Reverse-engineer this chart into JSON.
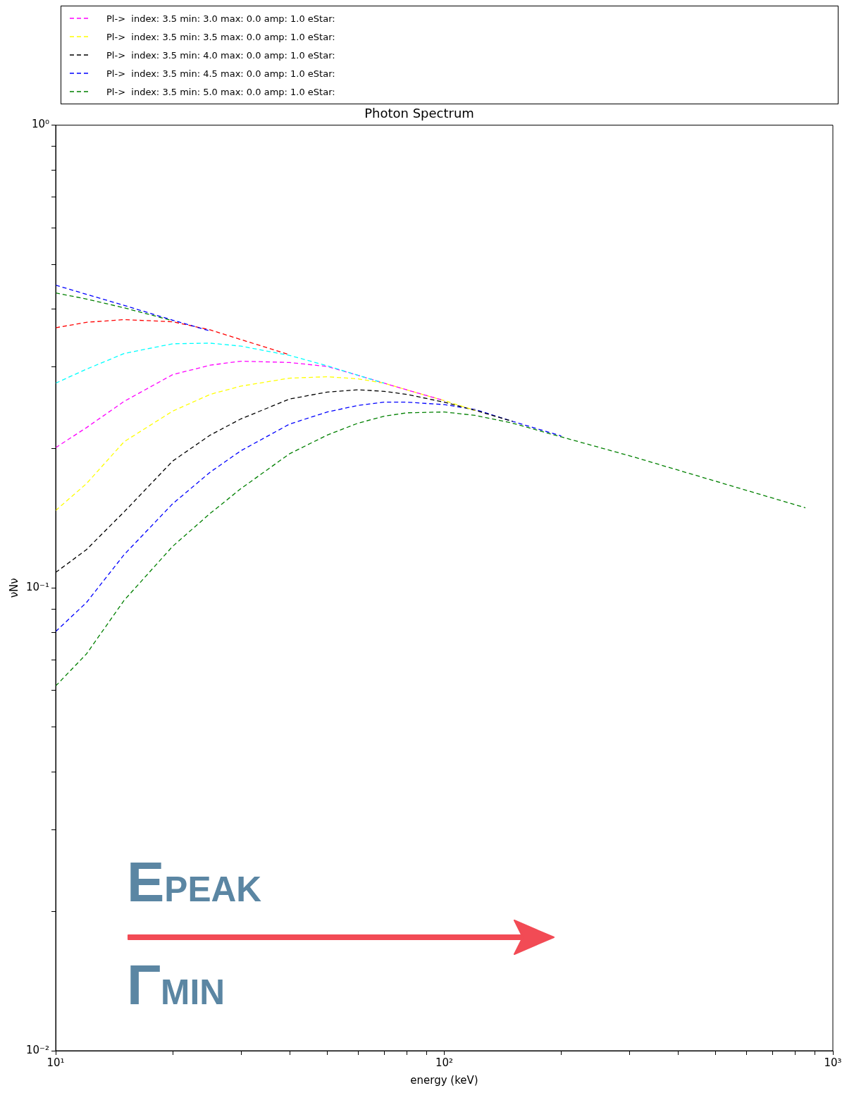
{
  "chart_data": {
    "type": "line",
    "title": "Photon Spectrum",
    "xlabel": "energy (keV)",
    "ylabel": "νNν",
    "log": "xy",
    "grid": false,
    "legend": "top",
    "marker": "none",
    "line_style": "dashed",
    "x": [
      10,
      12,
      15,
      20,
      25,
      30,
      40,
      50,
      60,
      70,
      80,
      100,
      120,
      150,
      200,
      300,
      500,
      850
    ],
    "xlim": [
      10,
      1000
    ],
    "ylim": [
      0.01,
      1
    ],
    "xticks": [
      {
        "value": 10,
        "label": "10¹"
      },
      {
        "value": 20,
        "label": null
      },
      {
        "value": 30,
        "label": null
      },
      {
        "value": 40,
        "label": null
      },
      {
        "value": 50,
        "label": null
      },
      {
        "value": 60,
        "label": null
      },
      {
        "value": 70,
        "label": null
      },
      {
        "value": 80,
        "label": null
      },
      {
        "value": 90,
        "label": null
      },
      {
        "value": 100,
        "label": "10²"
      },
      {
        "value": 200,
        "label": null
      },
      {
        "value": 300,
        "label": null
      },
      {
        "value": 400,
        "label": null
      },
      {
        "value": 500,
        "label": null
      },
      {
        "value": 600,
        "label": null
      },
      {
        "value": 700,
        "label": null
      },
      {
        "value": 800,
        "label": null
      },
      {
        "value": 900,
        "label": null
      },
      {
        "value": 1000,
        "label": "10³"
      }
    ],
    "yticks": [
      {
        "value": 0.01,
        "label": "10⁻²"
      },
      {
        "value": 0.02,
        "label": null
      },
      {
        "value": 0.03,
        "label": null
      },
      {
        "value": 0.04,
        "label": null
      },
      {
        "value": 0.05,
        "label": null
      },
      {
        "value": 0.06,
        "label": null
      },
      {
        "value": 0.07,
        "label": null
      },
      {
        "value": 0.08,
        "label": null
      },
      {
        "value": 0.09,
        "label": null
      },
      {
        "value": 0.1,
        "label": "10⁻¹"
      },
      {
        "value": 0.2,
        "label": null
      },
      {
        "value": 0.3,
        "label": null
      },
      {
        "value": 0.4,
        "label": null
      },
      {
        "value": 0.5,
        "label": null
      },
      {
        "value": 0.6,
        "label": null
      },
      {
        "value": 0.7,
        "label": null
      },
      {
        "value": 0.8,
        "label": null
      },
      {
        "value": 0.9,
        "label": null
      },
      {
        "value": 1,
        "label": "10⁰"
      }
    ],
    "series": [
      {
        "color": "#0000ff",
        "values": [
          0.451,
          0.431,
          0.408,
          0.379,
          0.359,
          null,
          null,
          null,
          null,
          null,
          null,
          null,
          null,
          null,
          null,
          null,
          null,
          null
        ]
      },
      {
        "color": "#008000",
        "values": [
          0.434,
          0.421,
          0.403,
          0.378,
          null,
          null,
          null,
          null,
          null,
          null,
          null,
          null,
          null,
          null,
          null,
          null,
          null,
          null
        ]
      },
      {
        "color": "#ff0000",
        "values": [
          0.365,
          0.375,
          0.38,
          0.376,
          0.361,
          0.344,
          0.319,
          null,
          null,
          null,
          null,
          null,
          null,
          null,
          null,
          null,
          null,
          null
        ]
      },
      {
        "color": "#00ffff",
        "values": [
          0.277,
          0.297,
          0.321,
          0.337,
          0.338,
          0.333,
          0.318,
          0.302,
          0.288,
          0.277,
          null,
          null,
          null,
          null,
          null,
          null,
          null,
          null
        ]
      },
      {
        "name": "Pl->  index: 3.5 min: 3.0 max: 0.0 amp: 1.0 eStar:",
        "color": "#ff00ff",
        "values": [
          0.201,
          0.222,
          0.253,
          0.289,
          0.303,
          0.309,
          0.307,
          0.301,
          0.288,
          0.277,
          0.268,
          0.254,
          null,
          null,
          null,
          null,
          null,
          null
        ]
      },
      {
        "name": "Pl->  index: 3.5 min: 3.5 max: 0.0 amp: 1.0 eStar:",
        "color": "#ffff00",
        "values": [
          0.147,
          0.168,
          0.207,
          0.241,
          0.262,
          0.273,
          0.284,
          0.286,
          0.283,
          0.277,
          0.268,
          0.254,
          0.242,
          null,
          null,
          null,
          null,
          null
        ]
      },
      {
        "name": "Pl->  index: 3.5 min: 4.0 max: 0.0 amp: 1.0 eStar:",
        "color": "#000000",
        "values": [
          0.108,
          0.121,
          0.146,
          0.188,
          0.214,
          0.232,
          0.256,
          0.265,
          0.268,
          0.266,
          0.262,
          0.252,
          0.242,
          0.229,
          null,
          null,
          null,
          null
        ]
      },
      {
        "name": "Pl->  index: 3.5 min: 4.5 max: 0.0 amp: 1.0 eStar:",
        "color": "#0000ff",
        "values": [
          0.0805,
          0.093,
          0.118,
          0.152,
          0.178,
          0.198,
          0.226,
          0.24,
          0.248,
          0.252,
          0.252,
          0.249,
          0.243,
          0.229,
          0.213,
          null,
          null,
          null
        ]
      },
      {
        "name": "Pl->  index: 3.5 min: 5.0 max: 0.0 amp: 1.0 eStar:",
        "color": "#008000",
        "values": [
          0.0614,
          0.072,
          0.094,
          0.123,
          0.145,
          0.164,
          0.195,
          0.214,
          0.227,
          0.235,
          0.239,
          0.24,
          0.236,
          0.227,
          0.212,
          0.193,
          0.17,
          0.149
        ]
      }
    ],
    "annotations": [
      "E$_{PEAK}$",
      "Γ$_{MIN}$"
    ]
  }
}
